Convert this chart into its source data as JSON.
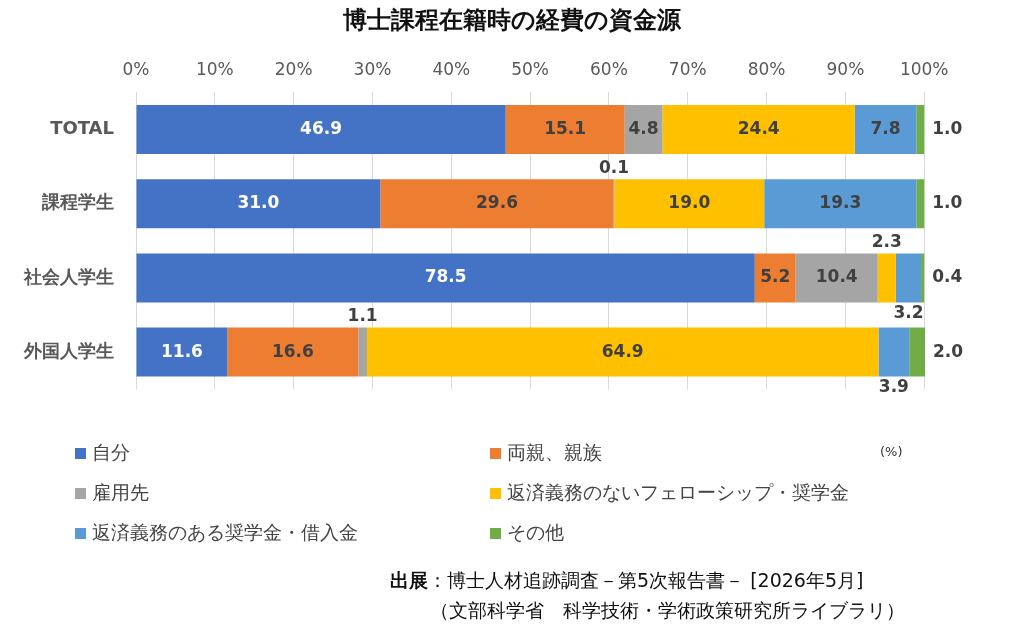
{
  "chart_data": {
    "type": "bar",
    "orientation": "horizontal",
    "stacked": true,
    "title": "博士課程在籍時の経費の資金源",
    "categories": [
      "TOTAL",
      "課程学生",
      "社会人学生",
      "外国人学生"
    ],
    "series": [
      {
        "name": "自分",
        "color": "#4472c4",
        "values": [
          46.9,
          31.0,
          78.5,
          11.6
        ],
        "value_labels": [
          "46.9",
          "31.0",
          "78.5",
          "11.6"
        ]
      },
      {
        "name": "両親、親族",
        "color": "#ed7d31",
        "values": [
          15.1,
          29.6,
          5.2,
          16.6
        ],
        "value_labels": [
          "15.1",
          "29.6",
          "5.2",
          "16.6"
        ]
      },
      {
        "name": "雇用先",
        "color": "#a5a5a5",
        "values": [
          4.8,
          0.1,
          10.4,
          1.1
        ],
        "value_labels": [
          "4.8",
          "0.1",
          "10.4",
          "1.1"
        ]
      },
      {
        "name": "返済義務のないフェローシップ・奨学金",
        "color": "#ffc000",
        "values": [
          24.4,
          19.0,
          2.3,
          64.9
        ],
        "value_labels": [
          "24.4",
          "19.0",
          "2.3",
          "64.9"
        ]
      },
      {
        "name": "返済義務のある奨学金・借入金",
        "color": "#5b9bd5",
        "values": [
          7.8,
          19.3,
          3.2,
          3.9
        ],
        "value_labels": [
          "7.8",
          "19.3",
          "3.2",
          "3.9"
        ]
      },
      {
        "name": "その他",
        "color": "#70ad47",
        "values": [
          1.0,
          1.0,
          0.4,
          2.0
        ],
        "value_labels": [
          "1.0",
          "1.0",
          "0.4",
          "2.0"
        ]
      }
    ],
    "xlim": [
      0,
      100.1
    ],
    "xticks": [
      {
        "value": 0,
        "label": "0%"
      },
      {
        "value": 10,
        "label": "10%"
      },
      {
        "value": 20,
        "label": "20%"
      },
      {
        "value": 30,
        "label": "30%"
      },
      {
        "value": 40,
        "label": "40%"
      },
      {
        "value": 50,
        "label": "50%"
      },
      {
        "value": 60,
        "label": "60%"
      },
      {
        "value": 70,
        "label": "70%"
      },
      {
        "value": 80,
        "label": "80%"
      },
      {
        "value": 90,
        "label": "90%"
      },
      {
        "value": 100,
        "label": "100%"
      }
    ],
    "grid": "x",
    "legend": "bottom",
    "annotations": [
      "(%)",
      "出展：博士人材追跡調査－第5次報告書－ [2026年5月]",
      "（文部科学省　科学技術・学術政策研究所ライブラリ）"
    ]
  }
}
